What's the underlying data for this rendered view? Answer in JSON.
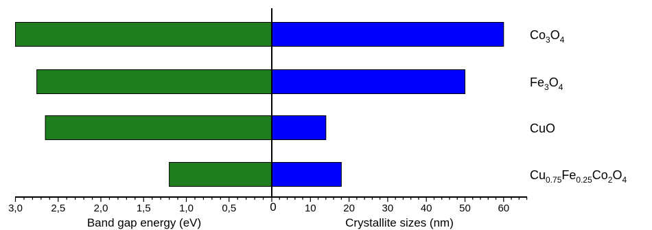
{
  "chart_data": {
    "type": "bar",
    "orientation": "horizontal",
    "layout": "butterfly",
    "categories": [
      {
        "base": "Co",
        "parts": [
          {
            "t": "Co",
            "s": false
          },
          {
            "t": "3",
            "s": true
          },
          {
            "t": "O",
            "s": false
          },
          {
            "t": "4",
            "s": true
          }
        ],
        "text": "Co3O4"
      },
      {
        "base": "Fe",
        "parts": [
          {
            "t": "Fe",
            "s": false
          },
          {
            "t": "3",
            "s": true
          },
          {
            "t": "O",
            "s": false
          },
          {
            "t": "4",
            "s": true
          }
        ],
        "text": "Fe3O4"
      },
      {
        "base": "CuO",
        "parts": [
          {
            "t": "CuO",
            "s": false
          }
        ],
        "text": "CuO"
      },
      {
        "base": "Cu",
        "parts": [
          {
            "t": "Cu",
            "s": false
          },
          {
            "t": "0.75",
            "s": true
          },
          {
            "t": "Fe",
            "s": false
          },
          {
            "t": "0.25",
            "s": true
          },
          {
            "t": "Co",
            "s": false
          },
          {
            "t": "2",
            "s": true
          },
          {
            "t": "O",
            "s": false
          },
          {
            "t": "4",
            "s": true
          }
        ],
        "text": "Cu0.75Fe0.25Co2O4"
      }
    ],
    "left_axis": {
      "xlabel": "Band gap energy (eV)",
      "xlim": [
        0,
        3.0
      ],
      "ticks": [
        3.0,
        2.5,
        2.0,
        1.5,
        1.0,
        0.5
      ],
      "tick_labels": [
        "3,0",
        "2,5",
        "2,0",
        "1,5",
        "1,0",
        "0,5"
      ],
      "color": "#1e7d1e",
      "values": [
        3.0,
        2.75,
        2.65,
        1.2
      ]
    },
    "right_axis": {
      "xlabel": "Crystallite sizes (nm)",
      "xlim": [
        0,
        60
      ],
      "ticks": [
        10,
        20,
        30,
        40,
        50,
        60
      ],
      "tick_labels": [
        "10",
        "20",
        "30",
        "40",
        "50",
        "60"
      ],
      "color": "#0000ff",
      "values": [
        60,
        50,
        14,
        18
      ]
    },
    "center_label": "0",
    "grid": false,
    "legend": "none"
  }
}
